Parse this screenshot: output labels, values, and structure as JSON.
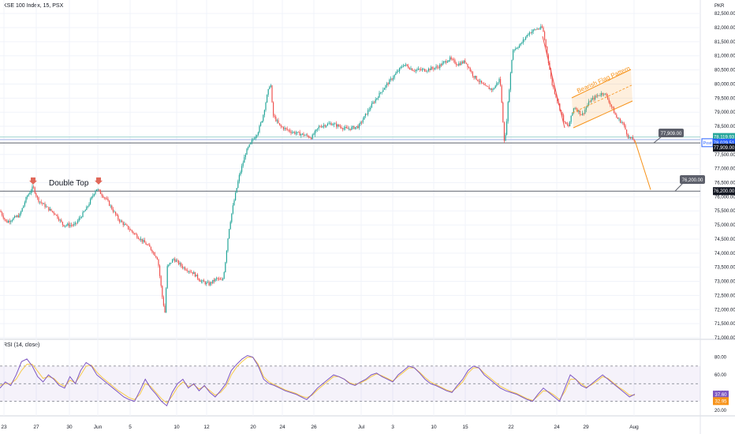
{
  "header": {
    "title": "KSE 100 Index, 15, PSX",
    "currency": "PKR"
  },
  "rsi_title": "RSI (14, close)",
  "chart_data": [
    {
      "type": "candlestick",
      "title": "KSE 100 Index, 15, PSX",
      "ylim": [
        71000,
        82700
      ],
      "y_ticks": [
        "82,500.00",
        "82,000.00",
        "81,500.00",
        "81,000.00",
        "80,500.00",
        "80,000.00",
        "79,500.00",
        "79,000.00",
        "78,500.00",
        "78,000.00",
        "77,500.00",
        "77,000.00",
        "76,500.00",
        "76,000.00",
        "75,500.00",
        "75,000.00",
        "74,500.00",
        "74,000.00",
        "73,500.00",
        "73,000.00",
        "72,500.00",
        "72,000.00",
        "71,500.00",
        "71,000.00"
      ],
      "x_ticks": [
        "23",
        "27",
        "30",
        "Jun",
        "5",
        "10",
        "12",
        "20",
        "24",
        "26",
        "Jul",
        "3",
        "10",
        "15",
        "22",
        "24",
        "29",
        "Aug"
      ],
      "path": [
        [
          0,
          75500
        ],
        [
          8,
          75100
        ],
        [
          25,
          75350
        ],
        [
          34,
          76000
        ],
        [
          42,
          76350
        ],
        [
          48,
          75900
        ],
        [
          60,
          75600
        ],
        [
          70,
          75400
        ],
        [
          80,
          75000
        ],
        [
          95,
          75000
        ],
        [
          110,
          75600
        ],
        [
          122,
          76300
        ],
        [
          135,
          75900
        ],
        [
          150,
          75200
        ],
        [
          170,
          74700
        ],
        [
          190,
          74200
        ],
        [
          200,
          73800
        ],
        [
          206,
          72400
        ],
        [
          209,
          71900
        ],
        [
          212,
          73500
        ],
        [
          220,
          73800
        ],
        [
          232,
          73500
        ],
        [
          245,
          73300
        ],
        [
          255,
          73000
        ],
        [
          265,
          72900
        ],
        [
          275,
          73100
        ],
        [
          282,
          73000
        ],
        [
          285,
          73500
        ],
        [
          290,
          74800
        ],
        [
          295,
          75600
        ],
        [
          303,
          76700
        ],
        [
          312,
          77600
        ],
        [
          320,
          78000
        ],
        [
          327,
          78300
        ],
        [
          333,
          78800
        ],
        [
          338,
          79500
        ],
        [
          343,
          80100
        ],
        [
          346,
          78900
        ],
        [
          355,
          78500
        ],
        [
          370,
          78300
        ],
        [
          385,
          78200
        ],
        [
          395,
          78100
        ],
        [
          405,
          78500
        ],
        [
          420,
          78600
        ],
        [
          440,
          78400
        ],
        [
          455,
          78500
        ],
        [
          470,
          79200
        ],
        [
          485,
          79800
        ],
        [
          500,
          80300
        ],
        [
          512,
          80700
        ],
        [
          524,
          80500
        ],
        [
          540,
          80500
        ],
        [
          555,
          80600
        ],
        [
          570,
          80900
        ],
        [
          580,
          80700
        ],
        [
          590,
          80800
        ],
        [
          600,
          80300
        ],
        [
          615,
          79900
        ],
        [
          625,
          79800
        ],
        [
          634,
          80200
        ],
        [
          640,
          77800
        ],
        [
          645,
          79600
        ],
        [
          650,
          81200
        ],
        [
          660,
          81400
        ],
        [
          670,
          81800
        ],
        [
          680,
          81950
        ],
        [
          688,
          82000
        ],
        [
          693,
          81200
        ],
        [
          700,
          80000
        ],
        [
          708,
          79300
        ],
        [
          716,
          78600
        ],
        [
          721,
          78500
        ],
        [
          728,
          79200
        ],
        [
          738,
          78900
        ],
        [
          748,
          79400
        ],
        [
          758,
          79600
        ],
        [
          766,
          79700
        ],
        [
          772,
          79400
        ],
        [
          782,
          78800
        ],
        [
          790,
          78600
        ],
        [
          797,
          78100
        ],
        [
          805,
          78000
        ]
      ],
      "annotations": [
        {
          "text": "Double Top",
          "points": [
            [
              42,
              76350
            ],
            [
              125,
              76350
            ]
          ]
        },
        {
          "text": "Bearish Flag Pattern"
        },
        {
          "level": 77909.0,
          "label": "77,909.00"
        },
        {
          "level": 76200.0,
          "label": "76,200.00"
        }
      ],
      "price_tags": [
        {
          "value": 78119.93,
          "label": "78,119.93",
          "color": "#26a69a"
        },
        {
          "value": 78029.51,
          "label": "78,029.51",
          "color": "#2962ff",
          "badge": "Post"
        },
        {
          "value": 77909.0,
          "label": "77,909.00",
          "color": "#131722"
        },
        {
          "value": 76200.0,
          "label": "76,200.00",
          "color": "#131722"
        }
      ],
      "target_path": [
        [
          805,
          78000
        ],
        [
          825,
          76250
        ]
      ],
      "colors": {
        "up": "#26a69a",
        "down": "#ef5350",
        "pattern": "#f7931a",
        "arrow": "#ef5350"
      }
    },
    {
      "type": "line",
      "title": "RSI (14, close)",
      "ylim": [
        18,
        86
      ],
      "y_ticks": [
        "80.00",
        "60.00",
        "40.00",
        "20.00"
      ],
      "bands": [
        30,
        50,
        70
      ],
      "current": [
        {
          "value": 37.6,
          "label": "37.60",
          "color": "#7e57c2"
        },
        {
          "value": 32.95,
          "label": "32.95",
          "color": "#f7931a"
        }
      ],
      "series": [
        {
          "values": [
            45,
            52,
            48,
            60,
            75,
            78,
            70,
            58,
            52,
            60,
            55,
            48,
            45,
            58,
            50,
            65,
            74,
            70,
            60,
            55,
            50,
            45,
            40,
            35,
            32,
            30,
            42,
            55,
            45,
            38,
            30,
            25,
            40,
            50,
            55,
            45,
            50,
            42,
            48,
            40,
            35,
            42,
            50,
            65,
            72,
            78,
            82,
            80,
            70,
            55,
            50,
            48,
            45,
            42,
            40,
            38,
            35,
            32,
            38,
            45,
            50,
            55,
            60,
            58,
            55,
            50,
            48,
            52,
            55,
            60,
            62,
            58,
            55,
            52,
            60,
            65,
            70,
            68,
            62,
            55,
            50,
            48,
            45,
            42,
            40,
            48,
            55,
            65,
            70,
            68,
            60,
            55,
            50,
            45,
            42,
            40,
            38,
            35,
            32,
            30,
            38,
            45,
            40,
            35,
            30,
            45,
            60,
            55,
            48,
            45,
            50,
            55,
            60,
            55,
            50,
            45,
            40,
            35,
            38
          ]
        },
        {
          "values": [
            48,
            50,
            50,
            55,
            65,
            72,
            72,
            64,
            56,
            58,
            56,
            50,
            47,
            54,
            51,
            60,
            70,
            71,
            63,
            57,
            52,
            47,
            42,
            38,
            34,
            32,
            38,
            50,
            47,
            40,
            33,
            28,
            36,
            46,
            52,
            47,
            49,
            44,
            47,
            42,
            37,
            40,
            47,
            60,
            69,
            75,
            80,
            80,
            72,
            58,
            52,
            49,
            46,
            43,
            41,
            39,
            36,
            34,
            37,
            43,
            48,
            53,
            58,
            58,
            55,
            51,
            49,
            51,
            54,
            58,
            61,
            59,
            56,
            53,
            58,
            63,
            68,
            68,
            63,
            57,
            52,
            49,
            46,
            43,
            41,
            46,
            52,
            62,
            68,
            68,
            62,
            57,
            52,
            47,
            44,
            41,
            39,
            36,
            33,
            31,
            36,
            42,
            41,
            37,
            32,
            41,
            55,
            55,
            50,
            46,
            49,
            53,
            58,
            56,
            51,
            46,
            42,
            37,
            37
          ]
        }
      ]
    }
  ]
}
